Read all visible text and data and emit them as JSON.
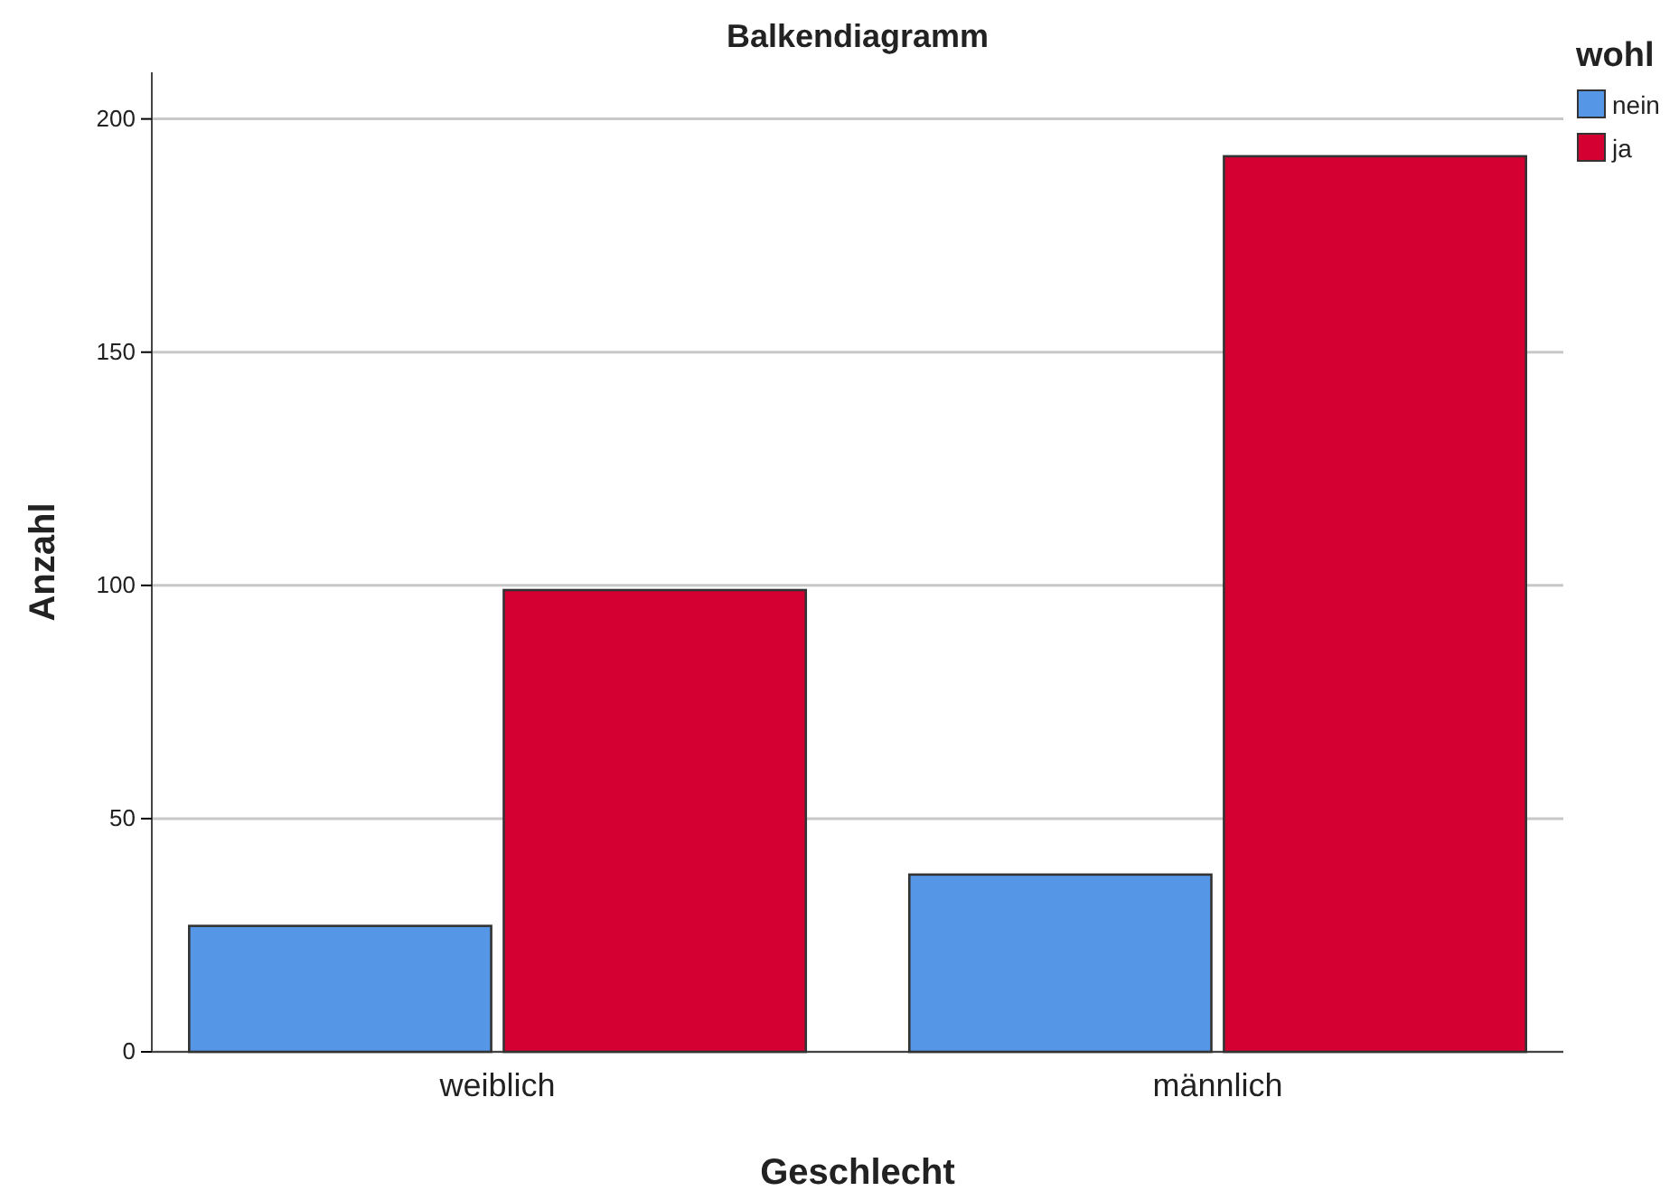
{
  "chart_data": {
    "type": "bar",
    "title": "Balkendiagramm",
    "xlabel": "Geschlecht",
    "ylabel": "Anzahl",
    "legend_title": "wohl",
    "categories": [
      "weiblich",
      "männlich"
    ],
    "series": [
      {
        "name": "nein",
        "color": "#5596e6",
        "values": [
          27,
          38
        ]
      },
      {
        "name": "ja",
        "color": "#d50032",
        "values": [
          99,
          192
        ]
      }
    ],
    "ylim": [
      0,
      210
    ],
    "yticks": [
      0,
      50,
      100,
      150,
      200
    ],
    "grid": "y",
    "legend": "top right"
  }
}
